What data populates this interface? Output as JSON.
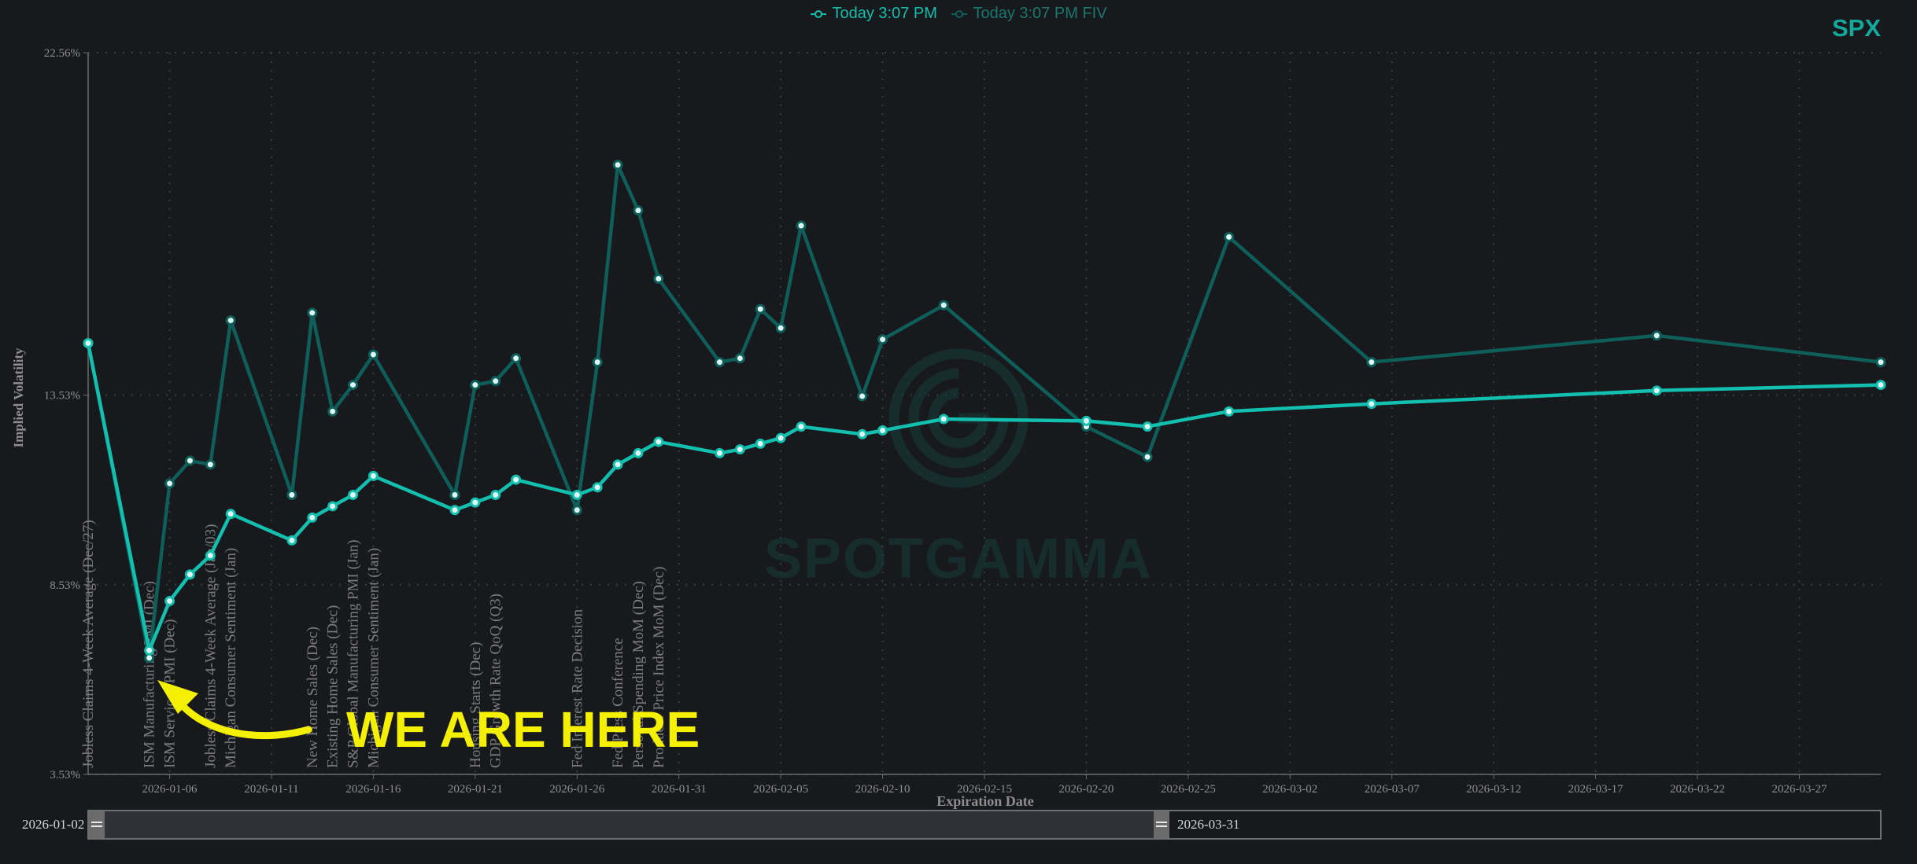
{
  "legend": {
    "series1_label": "Today 3:07 PM",
    "series2_label": "Today 3:07 PM FIV"
  },
  "ticker": "SPX",
  "watermark": {
    "text": "SPOTGAMMA"
  },
  "annotation": {
    "text": "WE ARE HERE",
    "color": "#f4f000"
  },
  "colors": {
    "background": "#17191c",
    "series1": "#13bfae",
    "series2": "#0e5f5a",
    "grid": "#3a3d42",
    "axis_text": "#8f8f8f",
    "event_text": "#7d7d7d"
  },
  "chart_data": {
    "type": "line",
    "title": "",
    "xlabel": "Expiration Date",
    "ylabel": "Implied Volatility",
    "ylim": [
      3.53,
      22.56
    ],
    "y_ticks": [
      "3.53%",
      "8.53%",
      "13.53%",
      "22.56%"
    ],
    "x_ticks": [
      "2026-01-06",
      "2026-01-11",
      "2026-01-16",
      "2026-01-21",
      "2026-01-26",
      "2026-01-31",
      "2026-02-05",
      "2026-02-10",
      "2026-02-15",
      "2026-02-20",
      "2026-02-25",
      "2026-03-02",
      "2026-03-07",
      "2026-03-12",
      "2026-03-17",
      "2026-03-22",
      "2026-03-27"
    ],
    "x_range": [
      "2026-01-02",
      "2026-03-31"
    ],
    "grid": true,
    "legend_position": "top-center",
    "series": [
      {
        "name": "Today 3:07 PM",
        "points": [
          [
            "2026-01-02",
            14.9
          ],
          [
            "2026-01-05",
            6.8
          ],
          [
            "2026-01-06",
            8.1
          ],
          [
            "2026-01-07",
            8.8
          ],
          [
            "2026-01-08",
            9.3
          ],
          [
            "2026-01-09",
            10.4
          ],
          [
            "2026-01-12",
            9.7
          ],
          [
            "2026-01-13",
            10.3
          ],
          [
            "2026-01-14",
            10.6
          ],
          [
            "2026-01-15",
            10.9
          ],
          [
            "2026-01-16",
            11.4
          ],
          [
            "2026-01-20",
            10.5
          ],
          [
            "2026-01-21",
            10.7
          ],
          [
            "2026-01-22",
            10.9
          ],
          [
            "2026-01-23",
            11.3
          ],
          [
            "2026-01-26",
            10.9
          ],
          [
            "2026-01-27",
            11.1
          ],
          [
            "2026-01-28",
            11.7
          ],
          [
            "2026-01-29",
            12.0
          ],
          [
            "2026-01-30",
            12.3
          ],
          [
            "2026-02-02",
            12.0
          ],
          [
            "2026-02-03",
            12.1
          ],
          [
            "2026-02-04",
            12.25
          ],
          [
            "2026-02-05",
            12.4
          ],
          [
            "2026-02-06",
            12.7
          ],
          [
            "2026-02-09",
            12.5
          ],
          [
            "2026-02-10",
            12.6
          ],
          [
            "2026-02-13",
            12.9
          ],
          [
            "2026-02-20",
            12.85
          ],
          [
            "2026-02-23",
            12.7
          ],
          [
            "2026-02-27",
            13.1
          ],
          [
            "2026-03-06",
            13.3
          ],
          [
            "2026-03-20",
            13.65
          ],
          [
            "2026-03-31",
            13.8
          ]
        ]
      },
      {
        "name": "Today 3:07 PM FIV",
        "points": [
          [
            "2026-01-02",
            14.9
          ],
          [
            "2026-01-05",
            6.6
          ],
          [
            "2026-01-06",
            11.2
          ],
          [
            "2026-01-07",
            11.8
          ],
          [
            "2026-01-08",
            11.7
          ],
          [
            "2026-01-09",
            15.5
          ],
          [
            "2026-01-12",
            10.9
          ],
          [
            "2026-01-13",
            15.7
          ],
          [
            "2026-01-14",
            13.1
          ],
          [
            "2026-01-15",
            13.8
          ],
          [
            "2026-01-16",
            14.6
          ],
          [
            "2026-01-20",
            10.9
          ],
          [
            "2026-01-21",
            13.8
          ],
          [
            "2026-01-22",
            13.9
          ],
          [
            "2026-01-23",
            14.5
          ],
          [
            "2026-01-26",
            10.5
          ],
          [
            "2026-01-27",
            14.4
          ],
          [
            "2026-01-28",
            19.6
          ],
          [
            "2026-01-29",
            18.4
          ],
          [
            "2026-01-30",
            16.6
          ],
          [
            "2026-02-02",
            14.4
          ],
          [
            "2026-02-03",
            14.5
          ],
          [
            "2026-02-04",
            15.8
          ],
          [
            "2026-02-05",
            15.3
          ],
          [
            "2026-02-06",
            18.0
          ],
          [
            "2026-02-09",
            13.5
          ],
          [
            "2026-02-10",
            15.0
          ],
          [
            "2026-02-13",
            15.9
          ],
          [
            "2026-02-20",
            12.7
          ],
          [
            "2026-02-23",
            11.9
          ],
          [
            "2026-02-27",
            17.7
          ],
          [
            "2026-03-06",
            14.4
          ],
          [
            "2026-03-20",
            15.1
          ],
          [
            "2026-03-31",
            14.4
          ]
        ]
      }
    ],
    "events": [
      {
        "label": "Jobless Claims 4-Week Average (Dec/27)",
        "date": "2026-01-02"
      },
      {
        "label": "ISM Manufacturing PMI (Dec)",
        "date": "2026-01-05"
      },
      {
        "label": "ISM Services PMI (Dec)",
        "date": "2026-01-06"
      },
      {
        "label": "Jobless Claims 4-Week Average (Jan/03)",
        "date": "2026-01-08"
      },
      {
        "label": "Michigan Consumer Sentiment (Jan)",
        "date": "2026-01-09"
      },
      {
        "label": "New Home Sales (Dec)",
        "date": "2026-01-13"
      },
      {
        "label": "Existing Home Sales (Dec)",
        "date": "2026-01-14"
      },
      {
        "label": "S&P Global Manufacturing PMI (Jan)",
        "date": "2026-01-15"
      },
      {
        "label": "Michigan Consumer Sentiment (Jan)",
        "date": "2026-01-16"
      },
      {
        "label": "Housing Starts (Dec)",
        "date": "2026-01-21"
      },
      {
        "label": "GDP Growth Rate QoQ (Q3)",
        "date": "2026-01-22"
      },
      {
        "label": "Fed Interest Rate Decision",
        "date": "2026-01-26"
      },
      {
        "label": "Fed Press Conference",
        "date": "2026-01-28"
      },
      {
        "label": "Personal Spending MoM (Dec)",
        "date": "2026-01-29"
      },
      {
        "label": "Producer Price Index MoM (Dec)",
        "date": "2026-01-30"
      }
    ]
  },
  "brush": {
    "start_label": "2026-01-02",
    "end_label": "2026-03-31"
  }
}
